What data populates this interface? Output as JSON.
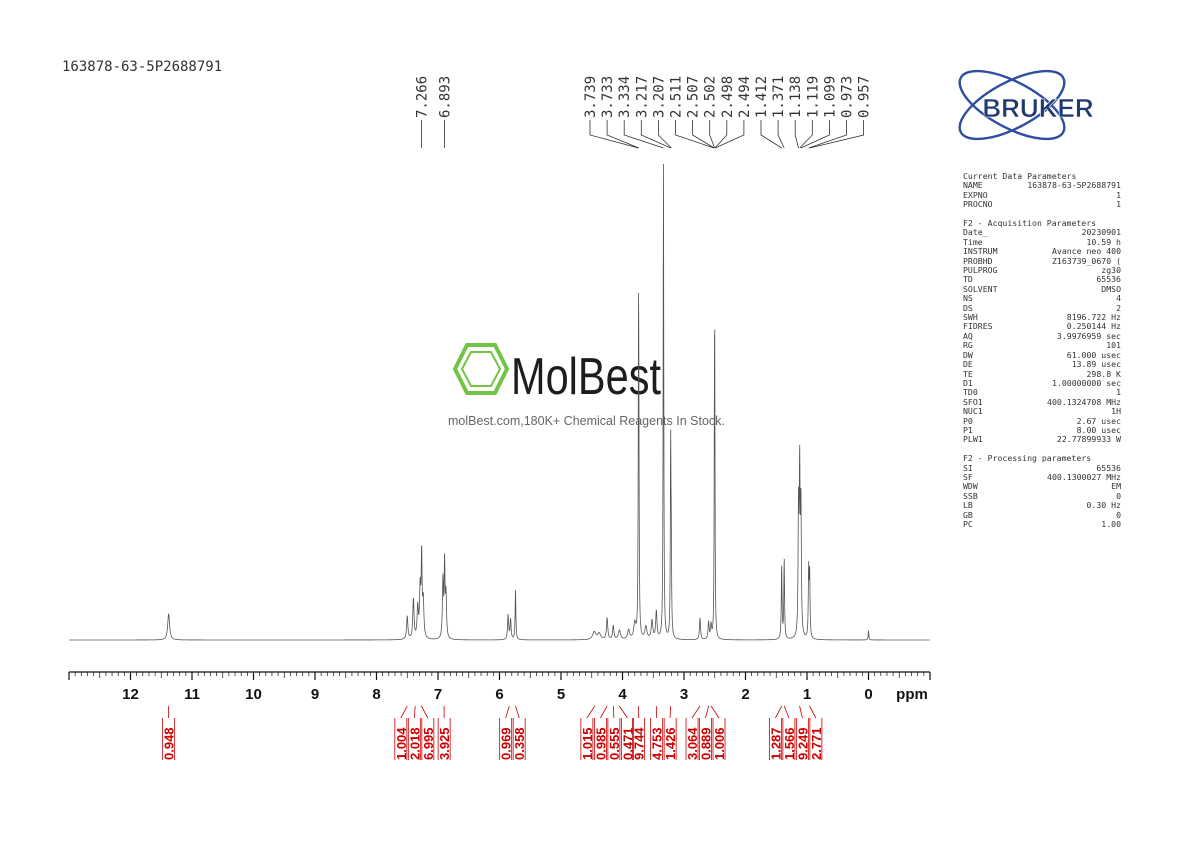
{
  "sample_name": "163878-63-5P2688791",
  "logo": {
    "text": "BRUKER",
    "color": "#1e3a6e",
    "accent": "#2f4ea1"
  },
  "watermark": {
    "brand": "MolBest",
    "tagline": "molBest.com,180K+ Chemical Reagents In Stock.",
    "color": "#6cc13d"
  },
  "parameters": [
    {
      "rows": [
        {
          "k": "Current Data Parameters",
          "v": ""
        },
        {
          "k": "NAME",
          "v": "163878-63-5P2688791"
        },
        {
          "k": "EXPNO",
          "v": "1"
        },
        {
          "k": "PROCNO",
          "v": "1"
        }
      ]
    },
    {
      "rows": [
        {
          "k": "F2 - Acquisition Parameters",
          "v": ""
        },
        {
          "k": "Date_",
          "v": "20230901"
        },
        {
          "k": "Time",
          "v": "10.59 h"
        },
        {
          "k": "INSTRUM",
          "v": "Avance neo 400"
        },
        {
          "k": "PROBHD",
          "v": "Z163739_0670 ("
        },
        {
          "k": "PULPROG",
          "v": "zg30"
        },
        {
          "k": "TD",
          "v": "65536"
        },
        {
          "k": "SOLVENT",
          "v": "DMSO"
        },
        {
          "k": "NS",
          "v": "4"
        },
        {
          "k": "DS",
          "v": "2"
        },
        {
          "k": "SWH",
          "v": "8196.722 Hz"
        },
        {
          "k": "FIDRES",
          "v": "0.250144 Hz"
        },
        {
          "k": "AQ",
          "v": "3.9976959 sec"
        },
        {
          "k": "RG",
          "v": "101"
        },
        {
          "k": "DW",
          "v": "61.000 usec"
        },
        {
          "k": "DE",
          "v": "13.89 usec"
        },
        {
          "k": "TE",
          "v": "298.8 K"
        },
        {
          "k": "D1",
          "v": "1.00000000 sec"
        },
        {
          "k": "TD0",
          "v": "1"
        },
        {
          "k": "SFO1",
          "v": "400.1324708 MHz"
        },
        {
          "k": "NUC1",
          "v": "1H"
        },
        {
          "k": "P0",
          "v": "2.67 usec"
        },
        {
          "k": "P1",
          "v": "8.00 usec"
        },
        {
          "k": "PLW1",
          "v": "22.77899933 W"
        }
      ]
    },
    {
      "rows": [
        {
          "k": "F2 - Processing parameters",
          "v": ""
        },
        {
          "k": "SI",
          "v": "65536"
        },
        {
          "k": "SF",
          "v": "400.1300027 MHz"
        },
        {
          "k": "WDW",
          "v": "EM"
        },
        {
          "k": "SSB",
          "v": "0"
        },
        {
          "k": "LB",
          "v": "0.30 Hz"
        },
        {
          "k": "GB",
          "v": "0"
        },
        {
          "k": "PC",
          "v": "1.00"
        }
      ]
    }
  ],
  "chart_data": {
    "type": "line",
    "xlabel": "ppm",
    "xlim": [
      13.0,
      -1.0
    ],
    "x_ticks": [
      12,
      11,
      10,
      9,
      8,
      7,
      6,
      5,
      4,
      3,
      2,
      1,
      0
    ],
    "line_color": "#555555",
    "integral_color": "#cc0000",
    "peak_labels": [
      {
        "group": 1,
        "items": [
          "7.266",
          "6.893"
        ]
      },
      {
        "group": 2,
        "items": [
          "3.739",
          "3.733",
          "3.334",
          "3.217",
          "3.207",
          "2.511",
          "2.507",
          "2.502",
          "2.498",
          "2.494",
          "1.412",
          "1.371",
          "1.138",
          "1.119",
          "1.099",
          "0.973",
          "0.957"
        ]
      }
    ],
    "peaks": [
      {
        "ppm": 11.38,
        "height": 0.085,
        "width": 0.018
      },
      {
        "ppm": 7.5,
        "height": 0.075,
        "width": 0.012
      },
      {
        "ppm": 7.4,
        "height": 0.13,
        "width": 0.012
      },
      {
        "ppm": 7.33,
        "height": 0.1,
        "width": 0.012
      },
      {
        "ppm": 7.29,
        "height": 0.16,
        "width": 0.012
      },
      {
        "ppm": 7.266,
        "height": 0.26,
        "width": 0.008
      },
      {
        "ppm": 7.24,
        "height": 0.12,
        "width": 0.012
      },
      {
        "ppm": 6.92,
        "height": 0.19,
        "width": 0.01
      },
      {
        "ppm": 6.893,
        "height": 0.24,
        "width": 0.008
      },
      {
        "ppm": 6.87,
        "height": 0.14,
        "width": 0.01
      },
      {
        "ppm": 5.86,
        "height": 0.08,
        "width": 0.01
      },
      {
        "ppm": 5.82,
        "height": 0.065,
        "width": 0.01
      },
      {
        "ppm": 5.74,
        "height": 0.16,
        "width": 0.007
      },
      {
        "ppm": 4.46,
        "height": 0.025,
        "width": 0.03
      },
      {
        "ppm": 4.38,
        "height": 0.02,
        "width": 0.03
      },
      {
        "ppm": 4.25,
        "height": 0.07,
        "width": 0.012
      },
      {
        "ppm": 4.15,
        "height": 0.045,
        "width": 0.012
      },
      {
        "ppm": 4.05,
        "height": 0.03,
        "width": 0.02
      },
      {
        "ppm": 3.9,
        "height": 0.03,
        "width": 0.02
      },
      {
        "ppm": 3.8,
        "height": 0.05,
        "width": 0.02
      },
      {
        "ppm": 3.739,
        "height": 1.0,
        "width": 0.006
      },
      {
        "ppm": 3.733,
        "height": 0.3,
        "width": 0.006
      },
      {
        "ppm": 3.62,
        "height": 0.04,
        "width": 0.02
      },
      {
        "ppm": 3.52,
        "height": 0.06,
        "width": 0.015
      },
      {
        "ppm": 3.45,
        "height": 0.09,
        "width": 0.012
      },
      {
        "ppm": 3.334,
        "height": 1.55,
        "width": 0.006
      },
      {
        "ppm": 3.217,
        "height": 0.63,
        "width": 0.006
      },
      {
        "ppm": 3.207,
        "height": 0.25,
        "width": 0.006
      },
      {
        "ppm": 2.74,
        "height": 0.07,
        "width": 0.01
      },
      {
        "ppm": 2.6,
        "height": 0.055,
        "width": 0.01
      },
      {
        "ppm": 2.56,
        "height": 0.045,
        "width": 0.01
      },
      {
        "ppm": 2.502,
        "height": 0.82,
        "width": 0.006
      },
      {
        "ppm": 2.507,
        "height": 0.25,
        "width": 0.004
      },
      {
        "ppm": 2.498,
        "height": 0.25,
        "width": 0.004
      },
      {
        "ppm": 1.412,
        "height": 0.24,
        "width": 0.007
      },
      {
        "ppm": 1.371,
        "height": 0.26,
        "width": 0.007
      },
      {
        "ppm": 1.138,
        "height": 0.4,
        "width": 0.008
      },
      {
        "ppm": 1.119,
        "height": 0.52,
        "width": 0.008
      },
      {
        "ppm": 1.099,
        "height": 0.42,
        "width": 0.008
      },
      {
        "ppm": 0.973,
        "height": 0.22,
        "width": 0.007
      },
      {
        "ppm": 0.957,
        "height": 0.21,
        "width": 0.007
      },
      {
        "ppm": 0.0,
        "height": 0.03,
        "width": 0.006
      }
    ],
    "integrals": [
      {
        "value": "0.948",
        "ppm_center": 11.38
      },
      {
        "value": "1.004",
        "ppm_center": 7.5
      },
      {
        "value": "2.018",
        "ppm_center": 7.37
      },
      {
        "value": "6.995",
        "ppm_center": 7.27
      },
      {
        "value": "3.925",
        "ppm_center": 6.9
      },
      {
        "value": "0.969",
        "ppm_center": 5.84
      },
      {
        "value": "0.358",
        "ppm_center": 5.74
      },
      {
        "value": "1.015",
        "ppm_center": 4.45
      },
      {
        "value": "0.985",
        "ppm_center": 4.25
      },
      {
        "value": "0.555",
        "ppm_center": 4.15
      },
      {
        "value": "0.471",
        "ppm_center": 4.05
      },
      {
        "value": "9.744",
        "ppm_center": 3.74
      },
      {
        "value": "4.753",
        "ppm_center": 3.45
      },
      {
        "value": "1.426",
        "ppm_center": 3.22
      },
      {
        "value": "3.064",
        "ppm_center": 2.74
      },
      {
        "value": "0.889",
        "ppm_center": 2.6
      },
      {
        "value": "1.006",
        "ppm_center": 2.56
      },
      {
        "value": "1.287",
        "ppm_center": 1.41
      },
      {
        "value": "1.566",
        "ppm_center": 1.37
      },
      {
        "value": "9.249",
        "ppm_center": 1.12
      },
      {
        "value": "2.771",
        "ppm_center": 0.96
      }
    ]
  }
}
